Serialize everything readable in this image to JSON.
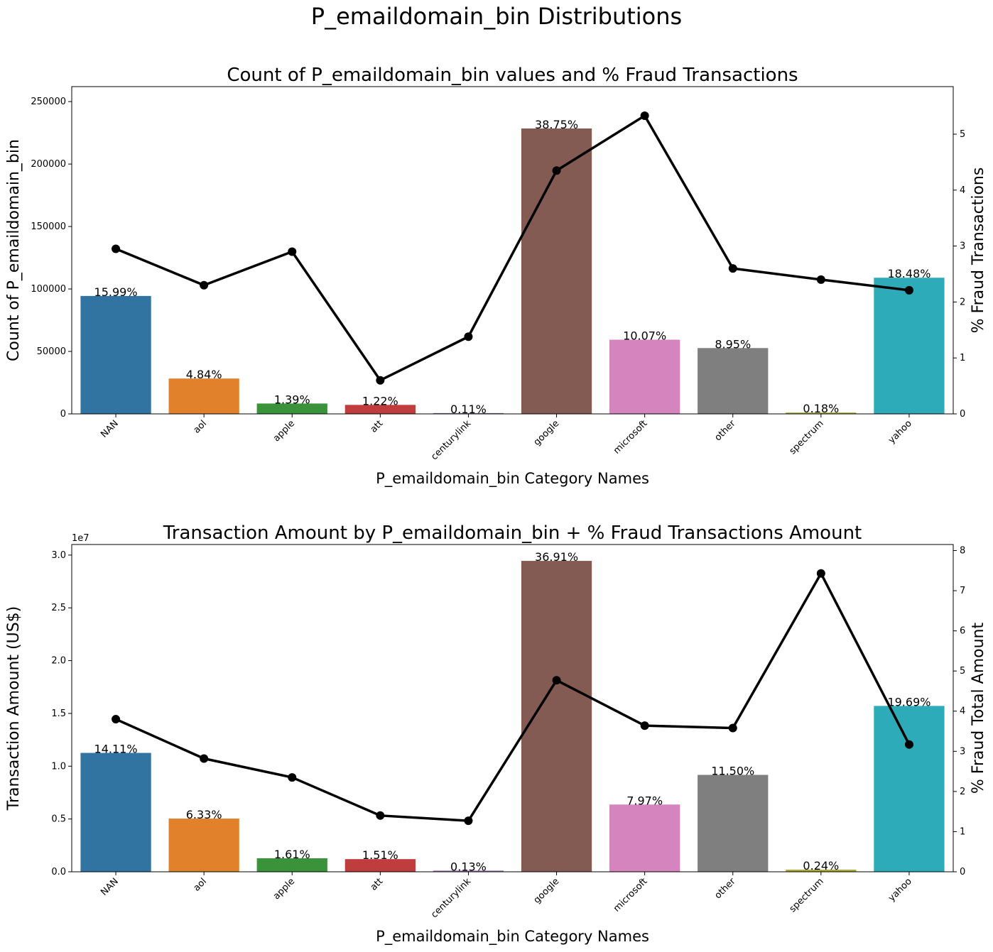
{
  "suptitle": "P_emaildomain_bin Distributions",
  "chart_data": [
    {
      "type": "bar",
      "title": "Count of P_emaildomain_bin values and % Fraud Transactions",
      "xlabel": "P_emaildomain_bin Category Names",
      "ylabel": "Count of P_emaildomain_bin",
      "y2label": "% Fraud Transactions",
      "categories": [
        "NAN",
        "aol",
        "apple",
        "att",
        "centurylink",
        "google",
        "microsoft",
        "other",
        "spectrum",
        "yahoo"
      ],
      "colors": [
        "#3274a1",
        "#e1812c",
        "#3a923a",
        "#c03d3e",
        "#9372b2",
        "#845b53",
        "#d684bd",
        "#7f7f7f",
        "#a9aa35",
        "#2eabb8"
      ],
      "values": [
        94400,
        28300,
        8300,
        7200,
        650,
        228500,
        59400,
        52700,
        1050,
        109000
      ],
      "bar_labels": [
        "15.99%",
        "4.84%",
        "1.39%",
        "1.22%",
        "0.11%",
        "38.75%",
        "10.07%",
        "8.95%",
        "0.18%",
        "18.48%"
      ],
      "ylim": [
        0,
        262000
      ],
      "yticks": [
        0,
        50000,
        100000,
        150000,
        200000,
        250000
      ],
      "ytick_labels": [
        "0",
        "50000",
        "100000",
        "150000",
        "200000",
        "250000"
      ],
      "y_offset_label": "",
      "line": {
        "name": "% Fraud Transactions",
        "color": "#000000",
        "values": [
          2.95,
          2.3,
          2.9,
          0.6,
          1.38,
          4.35,
          5.33,
          2.6,
          2.4,
          2.21
        ]
      },
      "y2lim": [
        0,
        5.85
      ],
      "y2ticks": [
        0,
        1,
        2,
        3,
        4,
        5
      ],
      "y2tick_labels": [
        "0",
        "1",
        "2",
        "3",
        "4",
        "5"
      ]
    },
    {
      "type": "bar",
      "title": "Transaction Amount by P_emaildomain_bin + % Fraud Transactions Amount",
      "xlabel": "P_emaildomain_bin Category Names",
      "ylabel": "Transaction Amount (US$)",
      "y2label": "% Fraud Total Amount",
      "categories": [
        "NAN",
        "aol",
        "apple",
        "att",
        "centurylink",
        "google",
        "microsoft",
        "other",
        "spectrum",
        "yahoo"
      ],
      "colors": [
        "#3274a1",
        "#e1812c",
        "#3a923a",
        "#c03d3e",
        "#9372b2",
        "#845b53",
        "#d684bd",
        "#7f7f7f",
        "#a9aa35",
        "#2eabb8"
      ],
      "values": [
        11260000,
        5040000,
        1280000,
        1200000,
        110000,
        29450000,
        6370000,
        9180000,
        200000,
        15710000
      ],
      "bar_labels": [
        "14.11%",
        "6.33%",
        "1.61%",
        "1.51%",
        "0.13%",
        "36.91%",
        "7.97%",
        "11.50%",
        "0.24%",
        "19.69%"
      ],
      "ylim": [
        0,
        31000000
      ],
      "yticks": [
        0,
        5000000,
        10000000,
        15000000,
        20000000,
        25000000,
        30000000
      ],
      "ytick_labels": [
        "0.0",
        "0.5",
        "1.0",
        "1.5",
        "2.0",
        "2.5",
        "3.0"
      ],
      "y_offset_label": "1e7",
      "line": {
        "name": "% Fraud Total Amount",
        "color": "#000000",
        "values": [
          3.8,
          2.82,
          2.35,
          1.4,
          1.27,
          4.77,
          3.64,
          3.58,
          7.43,
          3.17
        ]
      },
      "y2lim": [
        0,
        8.15
      ],
      "y2ticks": [
        0,
        1,
        2,
        3,
        4,
        5,
        6,
        7,
        8
      ],
      "y2tick_labels": [
        "0",
        "1",
        "2",
        "3",
        "4",
        "5",
        "6",
        "7",
        "8"
      ]
    }
  ]
}
